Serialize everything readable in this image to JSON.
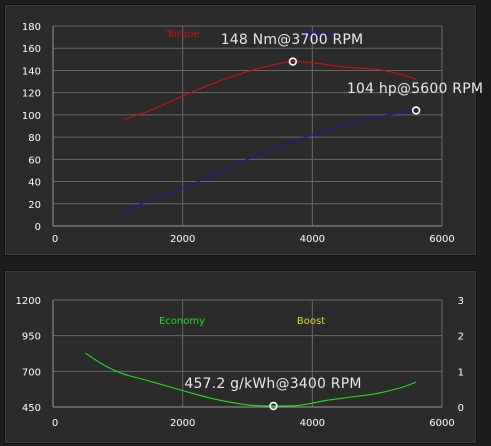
{
  "chart_data": [
    {
      "type": "line",
      "title": "",
      "xlabel": "",
      "ylabel": "",
      "xlim": [
        0,
        6000
      ],
      "ylim": [
        0,
        180
      ],
      "x_ticks": [
        0,
        2000,
        4000,
        6000
      ],
      "y_ticks": [
        0,
        20,
        40,
        60,
        80,
        100,
        120,
        140,
        160,
        180
      ],
      "grid": true,
      "legend_position": "top-center",
      "series": [
        {
          "name": "Torque",
          "color": "#cc1111",
          "x": [
            1100,
            1500,
            2000,
            2500,
            3000,
            3400,
            3700,
            4000,
            4500,
            5000,
            5400,
            5600
          ],
          "y": [
            96,
            104,
            117,
            129,
            139,
            145,
            148,
            147,
            143,
            141,
            136,
            132
          ]
        },
        {
          "name": "Power",
          "color": "#1a1aa8",
          "x": [
            1100,
            1500,
            2000,
            2500,
            3000,
            3500,
            4000,
            4500,
            5000,
            5600
          ],
          "y": [
            14,
            23,
            34,
            47,
            60,
            72,
            82,
            91,
            98,
            104
          ]
        }
      ],
      "annotations": [
        {
          "text": "148 Nm@3700 RPM",
          "x": 3700,
          "y": 148
        },
        {
          "text": "104 hp@5600 RPM",
          "x": 5600,
          "y": 104
        }
      ]
    },
    {
      "type": "line",
      "title": "",
      "xlabel": "",
      "ylabel": "",
      "xlim": [
        0,
        6000
      ],
      "ylim": [
        450,
        1200
      ],
      "y2lim": [
        0,
        3
      ],
      "x_ticks": [
        0,
        2000,
        4000,
        6000
      ],
      "y_ticks": [
        450,
        700,
        950,
        1200
      ],
      "y2_ticks": [
        0,
        1,
        2,
        3
      ],
      "grid": true,
      "legend_position": "top-center",
      "series": [
        {
          "name": "Economy",
          "color": "#22dd22",
          "x": [
            500,
            800,
            1100,
            1500,
            2000,
            2500,
            3000,
            3400,
            3800,
            4200,
            4600,
            5000,
            5400,
            5600
          ],
          "y": [
            828,
            740,
            680,
            630,
            565,
            505,
            465,
            457,
            462,
            495,
            520,
            545,
            590,
            625
          ]
        },
        {
          "name": "Boost",
          "color": "#dddd22",
          "x": [],
          "y": []
        }
      ],
      "annotations": [
        {
          "text": "457.2 g/kWh@3400 RPM",
          "x": 3400,
          "y": 457
        }
      ]
    }
  ]
}
